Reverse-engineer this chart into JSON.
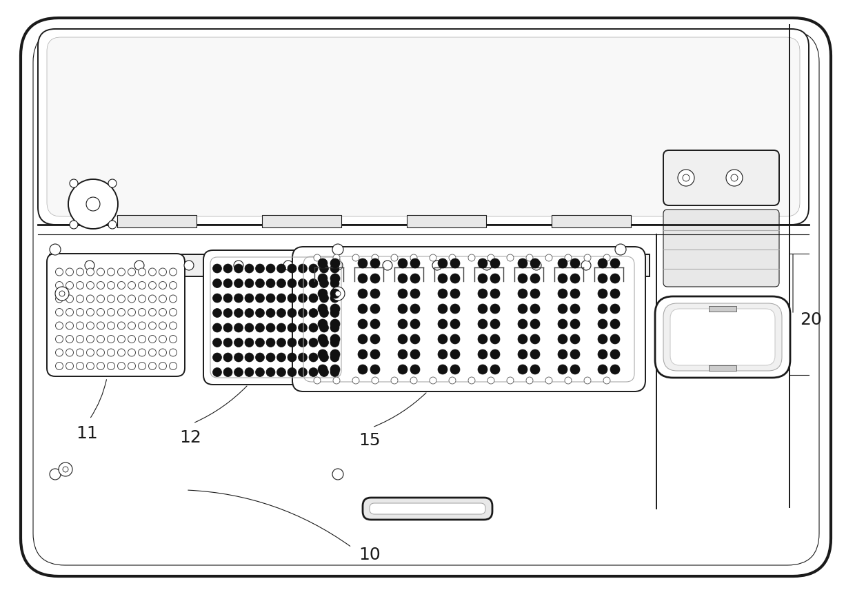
{
  "bg_color": "#ffffff",
  "lc": "#1a1a1a",
  "gray1": "#aaaaaa",
  "gray2": "#cccccc",
  "gray3": "#e8e8e8",
  "gray4": "#f0f0f0",
  "fig_width": 12.4,
  "fig_height": 8.56,
  "dpi": 100
}
